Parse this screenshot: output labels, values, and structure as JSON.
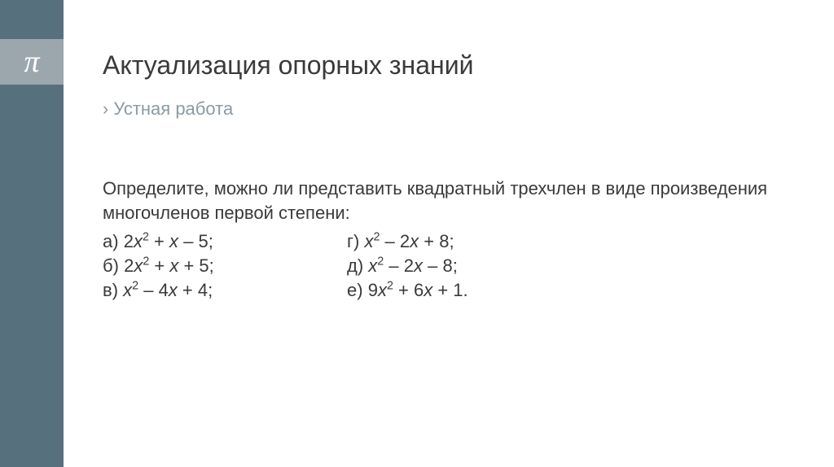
{
  "sidebar": {
    "pi_symbol": "π",
    "colors": {
      "dark": "#57707e",
      "light": "#9ba7ad",
      "symbol": "#ffffff"
    }
  },
  "title": "Актуализация опорных знаний",
  "subtitle_marker": "›",
  "subtitle": "Устная работа",
  "intro": "Определите, можно ли представить квадратный трехчлен в виде произведения многочленов первой степени:",
  "problems": {
    "a": {
      "label": "а)",
      "coef1": "2",
      "var1": "х",
      "exp1": "2",
      "op1": " + ",
      "var2": "х",
      "op2": " – ",
      "c": "5",
      "tail": ";"
    },
    "b": {
      "label": "б)",
      "coef1": "2",
      "var1": "х",
      "exp1": "2",
      "op1": " + ",
      "var2": "х",
      "op2": " + ",
      "c": "5",
      "tail": ";"
    },
    "v": {
      "label": "в)",
      "coef1": "",
      "var1": "х",
      "exp1": "2",
      "op1": " – ",
      "coef2": "4",
      "var2": "х",
      "op2": " + ",
      "c": "4",
      "tail": ";"
    },
    "g": {
      "label": "г)",
      "coef1": "",
      "var1": "х",
      "exp1": "2",
      "op1": " – ",
      "coef2": "2",
      "var2": "х",
      "op2": " + ",
      "c": "8",
      "tail": ";"
    },
    "d": {
      "label": "д)",
      "coef1": "",
      "var1": "х",
      "exp1": "2",
      "op1": " – ",
      "coef2": "2",
      "var2": "х",
      "op2": " – ",
      "c": "8",
      "tail": ";"
    },
    "e": {
      "label": "е)",
      "coef1": "9",
      "var1": "х",
      "exp1": "2",
      "op1": " + ",
      "coef2": "6",
      "var2": "х",
      "op2": " + ",
      "c": "1",
      "tail": "."
    }
  },
  "style": {
    "title_color": "#3a3a3a",
    "subtitle_color": "#8b9aa3",
    "body_color": "#3a3a3a",
    "title_fontsize": 32,
    "subtitle_fontsize": 22,
    "body_fontsize": 22,
    "background": "#ffffff"
  }
}
